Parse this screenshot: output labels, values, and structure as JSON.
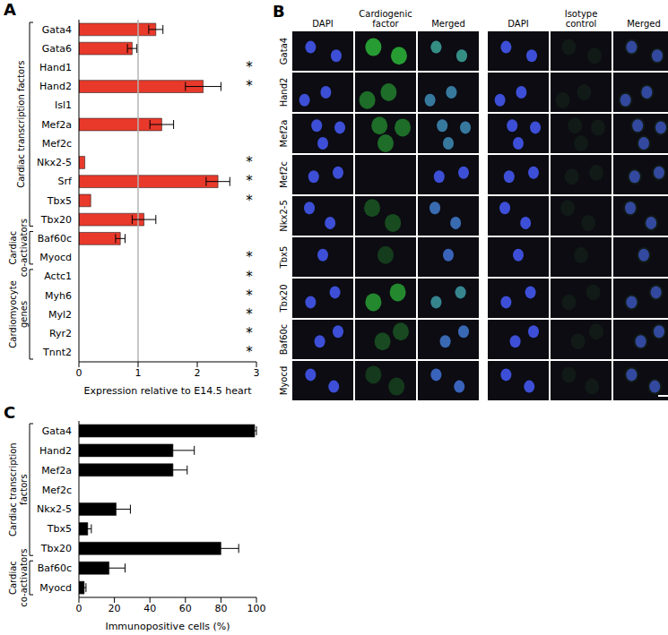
{
  "chart_data": [
    {
      "panel": "A",
      "type": "bar",
      "orientation": "horizontal",
      "categories": [
        "Gata4",
        "Gata6",
        "Hand1",
        "Hand2",
        "Isl1",
        "Mef2a",
        "Mef2c",
        "Nkx2-5",
        "Srf",
        "Tbx5",
        "Tbx20",
        "Baf60c",
        "Myocd",
        "Actc1",
        "Myh6",
        "Myl2",
        "Ryr2",
        "Tnnt2"
      ],
      "values": [
        1.3,
        0.9,
        0,
        2.1,
        0,
        1.4,
        0,
        0.1,
        2.35,
        0.2,
        1.1,
        0.7,
        0,
        0,
        0,
        0,
        0,
        0
      ],
      "errors": [
        0.12,
        0.08,
        null,
        0.3,
        null,
        0.2,
        null,
        null,
        0.2,
        null,
        0.2,
        0.08,
        null,
        null,
        null,
        null,
        null,
        null
      ],
      "annotations": [
        null,
        null,
        "*",
        "*",
        null,
        null,
        null,
        "*",
        "*",
        "*",
        null,
        null,
        "*",
        "*",
        "*",
        "*",
        "*",
        "*"
      ],
      "groups": [
        {
          "label": "Cardiac transcription factors",
          "count": 11
        },
        {
          "label": "Cardiac co-activators",
          "count": 2
        },
        {
          "label": "Cardiomyocyte genes",
          "count": 5
        }
      ],
      "xlabel": "Expression relative to E14.5 heart",
      "xlim": [
        0,
        3
      ],
      "xticks": [
        0,
        1,
        2,
        3
      ],
      "reference_line": 1,
      "color": "#e8392b"
    },
    {
      "panel": "C",
      "type": "bar",
      "orientation": "horizontal",
      "categories": [
        "Gata4",
        "Hand2",
        "Mef2a",
        "Mef2c",
        "Nkx2-5",
        "Tbx5",
        "Tbx20",
        "Baf60c",
        "Myocd"
      ],
      "values": [
        99,
        53,
        53,
        0,
        21,
        5,
        80,
        17,
        3
      ],
      "errors": [
        1,
        12,
        8,
        null,
        8,
        2,
        10,
        9,
        1
      ],
      "groups": [
        {
          "label": "Cardiac transcription factors",
          "count": 7
        },
        {
          "label": "Cardiac co-activators",
          "count": 2
        }
      ],
      "xlabel": "Immunopositive cells (%)",
      "xlim": [
        0,
        100
      ],
      "xticks": [
        0,
        20,
        40,
        60,
        80,
        100
      ],
      "color": "#000000"
    }
  ],
  "image_panel": {
    "panel": "B",
    "columns": [
      "DAPI",
      "Cardiogenic factor",
      "Merged",
      "DAPI",
      "Isotype control",
      "Merged"
    ],
    "rows": [
      "Gata4",
      "Hand2",
      "Mef2a",
      "Mef2c",
      "Nkx2-5",
      "Tbx5",
      "Tbx20",
      "Baf60c",
      "Myocd"
    ]
  }
}
